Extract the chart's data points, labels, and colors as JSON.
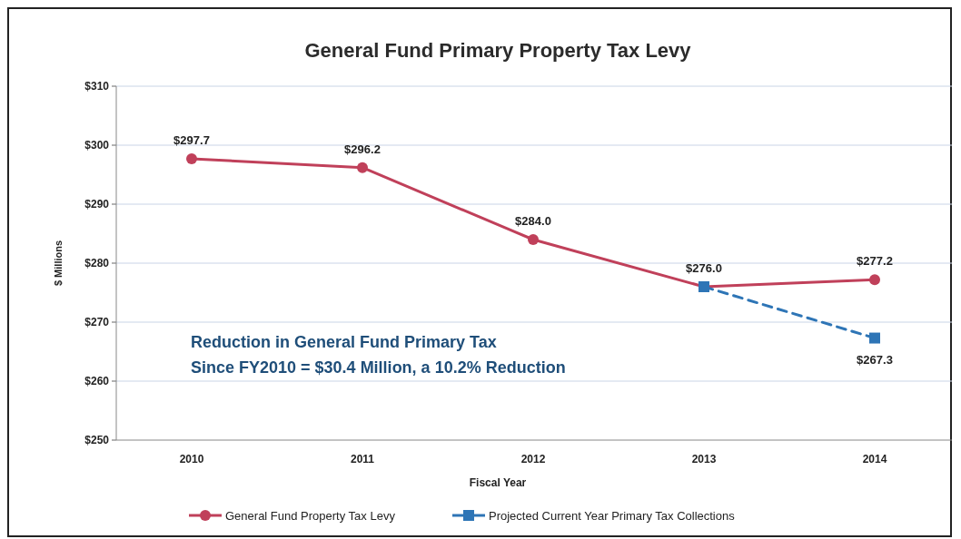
{
  "chart_data": {
    "type": "line",
    "title": "General Fund Primary Property Tax Levy",
    "xlabel": "Fiscal Year",
    "ylabel": "$ Millions",
    "categories": [
      "2010",
      "2011",
      "2012",
      "2013",
      "2014"
    ],
    "series": [
      {
        "name": "General Fund Property Tax Levy",
        "color": "#c0405a",
        "values": [
          297.7,
          296.2,
          284.0,
          276.0,
          277.2
        ],
        "marker": "circle",
        "line_style": "solid",
        "value_labels": [
          "$297.7",
          "$296.2",
          "$284.0",
          "$276.0",
          "$277.2"
        ]
      },
      {
        "name": "Projected Current Year Primary Tax Collections",
        "color": "#2e75b6",
        "values": [
          null,
          null,
          null,
          276.0,
          267.3
        ],
        "marker": "square",
        "line_style": "dashed",
        "value_labels": [
          null,
          null,
          null,
          null,
          "$267.3"
        ]
      }
    ],
    "ylim": [
      250,
      310
    ],
    "yticks": [
      {
        "value": 250,
        "label": "$250"
      },
      {
        "value": 260,
        "label": "$260"
      },
      {
        "value": 270,
        "label": "$270"
      },
      {
        "value": 280,
        "label": "$280"
      },
      {
        "value": 290,
        "label": "$290"
      },
      {
        "value": 300,
        "label": "$300"
      },
      {
        "value": 310,
        "label": "$310"
      }
    ],
    "grid": "y",
    "legend": "bottom",
    "annotations": [
      "Reduction in General Fund Primary Tax",
      "Since FY2010 = $30.4 Million, a 10.2% Reduction"
    ]
  }
}
